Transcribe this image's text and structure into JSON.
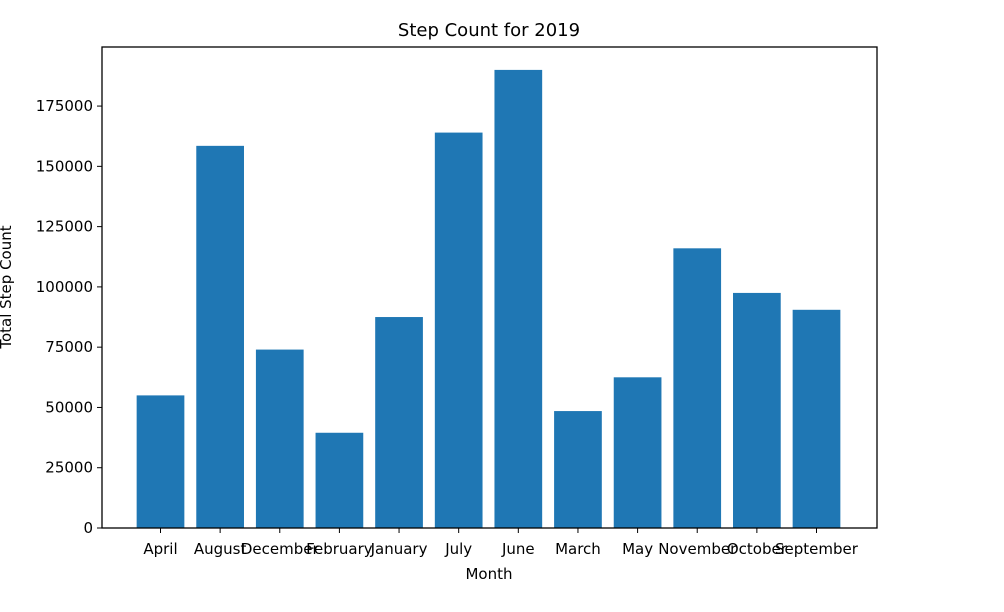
{
  "chart_data": {
    "type": "bar",
    "title": "Step Count for 2019",
    "xlabel": "Month",
    "ylabel": "Total Step Count",
    "categories": [
      "April",
      "August",
      "December",
      "February",
      "January",
      "July",
      "June",
      "March",
      "May",
      "November",
      "October",
      "September"
    ],
    "values": [
      55000,
      158500,
      74000,
      39500,
      87500,
      164000,
      190000,
      48500,
      62500,
      116000,
      97500,
      90500
    ],
    "ylim": [
      0,
      199500
    ],
    "yticks": [
      0,
      25000,
      50000,
      75000,
      100000,
      125000,
      150000,
      175000
    ],
    "ytick_labels": [
      "0",
      "25000",
      "50000",
      "75000",
      "100000",
      "125000",
      "150000",
      "175000"
    ],
    "grid": false,
    "bar_color": "#1f77b4"
  }
}
